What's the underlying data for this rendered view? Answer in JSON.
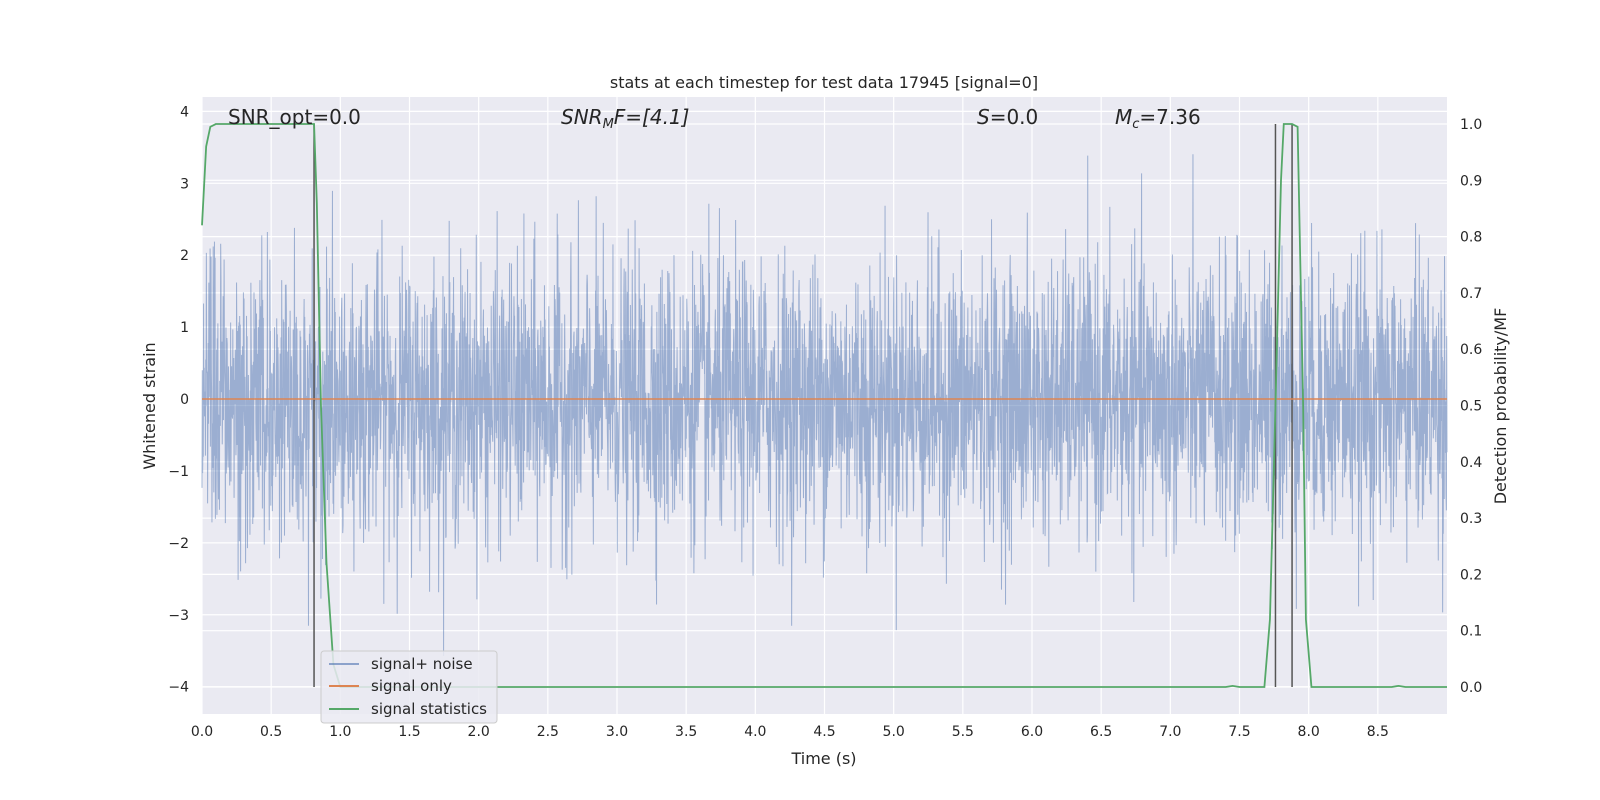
{
  "chart_data": {
    "type": "line",
    "title": "stats at each timestep for test data 17945 [signal=0]",
    "xlabel": "Time (s)",
    "ylabel_left": "Whitened strain",
    "ylabel_right": "Detection probability/MF",
    "xlim": [
      0,
      9
    ],
    "ylim_left": [
      -4.38,
      4.2
    ],
    "ylim_right": [
      -0.048,
      1.048
    ],
    "x_ticks": [
      0.0,
      0.5,
      1.0,
      1.5,
      2.0,
      2.5,
      3.0,
      3.5,
      4.0,
      4.5,
      5.0,
      5.5,
      6.0,
      6.5,
      7.0,
      7.5,
      8.0,
      8.5
    ],
    "x_tick_labels": [
      "0.0",
      "0.5",
      "1.0",
      "1.5",
      "2.0",
      "2.5",
      "3.0",
      "3.5",
      "4.0",
      "4.5",
      "5.0",
      "5.5",
      "6.0",
      "6.5",
      "7.0",
      "7.5",
      "8.0",
      "8.5"
    ],
    "y_left_ticks": [
      -4,
      -3,
      -2,
      -1,
      0,
      1,
      2,
      3,
      4
    ],
    "y_left_tick_labels": [
      "−4",
      "−3",
      "−2",
      "−1",
      "0",
      "1",
      "2",
      "3",
      "4"
    ],
    "y_right_ticks": [
      0.0,
      0.1,
      0.2,
      0.3,
      0.4,
      0.5,
      0.6,
      0.7,
      0.8,
      0.9,
      1.0
    ],
    "y_right_tick_labels": [
      "0.0",
      "0.1",
      "0.2",
      "0.3",
      "0.4",
      "0.5",
      "0.6",
      "0.7",
      "0.8",
      "0.9",
      "1.0"
    ],
    "grid": true,
    "legend_position": "lower-left",
    "annotations": {
      "snr_opt": "SNR_opt=0.0",
      "snr_mf_base": "SNR",
      "snr_mf_sub": "M",
      "snr_mf_tail": "F=[4.1]",
      "s_italic": "S",
      "s_tail": "=0.0",
      "mc_base": "M",
      "mc_sub": "c",
      "mc_tail": "=7.36"
    },
    "series": [
      {
        "name": "signal+ noise",
        "color": "#4c72b0",
        "description_values": "whitened noise, amplitude mostly within ±2.5, peaks near ±3.8",
        "y_range_typical": [
          -2.5,
          2.5
        ]
      },
      {
        "name": "signal only",
        "color": "#dd8452",
        "x": [
          0,
          9
        ],
        "y": [
          0,
          0
        ]
      },
      {
        "name": "signal statistics",
        "color": "#55a868",
        "axis": "right",
        "x": [
          0.0,
          0.03,
          0.06,
          0.1,
          0.2,
          0.4,
          0.6,
          0.78,
          0.81,
          0.83,
          0.86,
          0.9,
          0.95,
          1.0,
          2.0,
          3.0,
          4.0,
          5.0,
          6.0,
          7.0,
          7.3,
          7.4,
          7.45,
          7.5,
          7.6,
          7.68,
          7.72,
          7.76,
          7.8,
          7.82,
          7.88,
          7.92,
          7.96,
          7.98,
          8.02,
          8.1,
          8.5,
          8.6,
          8.65,
          8.7,
          9.0
        ],
        "y": [
          0.82,
          0.96,
          0.995,
          1.0,
          1.0,
          1.0,
          1.0,
          1.0,
          1.0,
          0.86,
          0.5,
          0.22,
          0.04,
          0.0,
          0.0,
          0.0,
          0.0,
          0.0,
          0.0,
          0.0,
          0.0,
          0.0,
          0.002,
          0.0,
          0.0,
          0.0,
          0.12,
          0.5,
          0.9,
          1.0,
          1.0,
          0.995,
          0.5,
          0.12,
          0.0,
          0.0,
          0.0,
          0.0,
          0.002,
          0.0,
          0.0
        ]
      }
    ],
    "vertical_markers": [
      {
        "x": 0.81,
        "ymin": 0.0,
        "ymax": 1.0,
        "color": "#555555"
      },
      {
        "x": 7.76,
        "ymin": 0.0,
        "ymax": 1.0,
        "color": "#555555"
      },
      {
        "x": 7.88,
        "ymin": 0.0,
        "ymax": 1.0,
        "color": "#555555"
      }
    ],
    "colors": {
      "plot_bg": "#eaeaf2",
      "grid": "#ffffff"
    }
  }
}
